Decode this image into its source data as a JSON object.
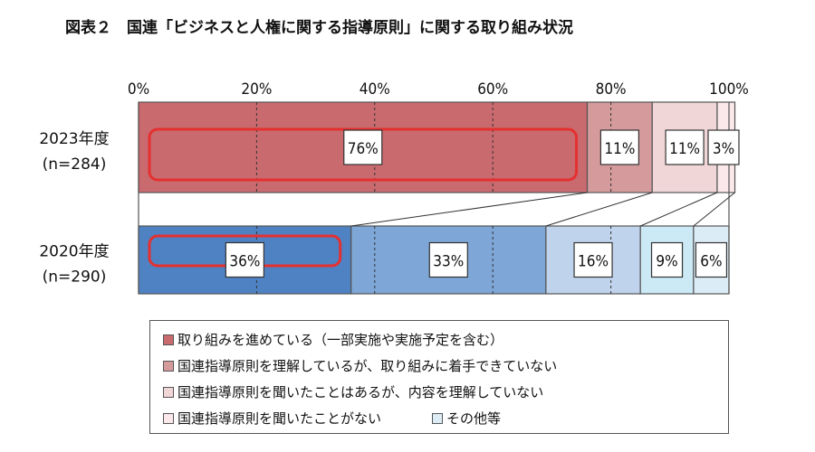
{
  "title": "図表２　国連「ビジネスと人権に関する指導原則」に関する取り組み状況",
  "chart_data": {
    "type": "bar",
    "orientation": "horizontal",
    "stacked": true,
    "percent_scale": true,
    "xlim": [
      0,
      100
    ],
    "x_ticks": [
      "0%",
      "20%",
      "40%",
      "60%",
      "80%",
      "100%"
    ],
    "grid": true,
    "categories": [
      {
        "year": "2023年度",
        "n": "(n=284)"
      },
      {
        "year": "2020年度",
        "n": "(n=290)"
      }
    ],
    "series": [
      {
        "name": "取り組みを進めている（一部実施や実施予定を含む）",
        "color": "#c96a6f",
        "values": [
          76,
          36
        ],
        "labels": [
          "76%",
          "36%"
        ],
        "color_2020": "#4f82c2"
      },
      {
        "name": "国連指導原則を理解しているが、取り組みに着手できていない",
        "color": "#d49a9c",
        "values": [
          11,
          33
        ],
        "labels": [
          "11%",
          "33%"
        ],
        "color_2020": "#7ea6d6"
      },
      {
        "name": "国連指導原則を聞いたことはあるが、内容を理解していない",
        "color": "#f0d6d6",
        "values": [
          11,
          16
        ],
        "labels": [
          "11%",
          "16%"
        ],
        "color_2020": "#c0d3ec"
      },
      {
        "name": "国連指導原則を聞いたことがない",
        "color": "#fbe8ea",
        "values": [
          3,
          9
        ],
        "labels": [
          "3%",
          "9%"
        ],
        "color_2020": "#cbeaf6"
      },
      {
        "name": "その他等",
        "color": "#dcecf6",
        "values": [
          0,
          6
        ],
        "labels": [
          "",
          "6%"
        ],
        "color_2020": "#dcecf6"
      }
    ],
    "highlight_color": "#e53030",
    "legend": [
      {
        "label": "取り組みを進めている（一部実施や実施予定を含む）",
        "color": "#c96a6f"
      },
      {
        "label": "国連指導原則を理解しているが、取り組みに着手できていない",
        "color": "#d49a9c"
      },
      {
        "label": "国連指導原則を聞いたことはあるが、内容を理解していない",
        "color": "#f0d6d6"
      },
      {
        "label": "国連指導原則を聞いたことがない",
        "color": "#fbe8ea"
      },
      {
        "label": "その他等",
        "color": "#dcecf6"
      }
    ]
  }
}
